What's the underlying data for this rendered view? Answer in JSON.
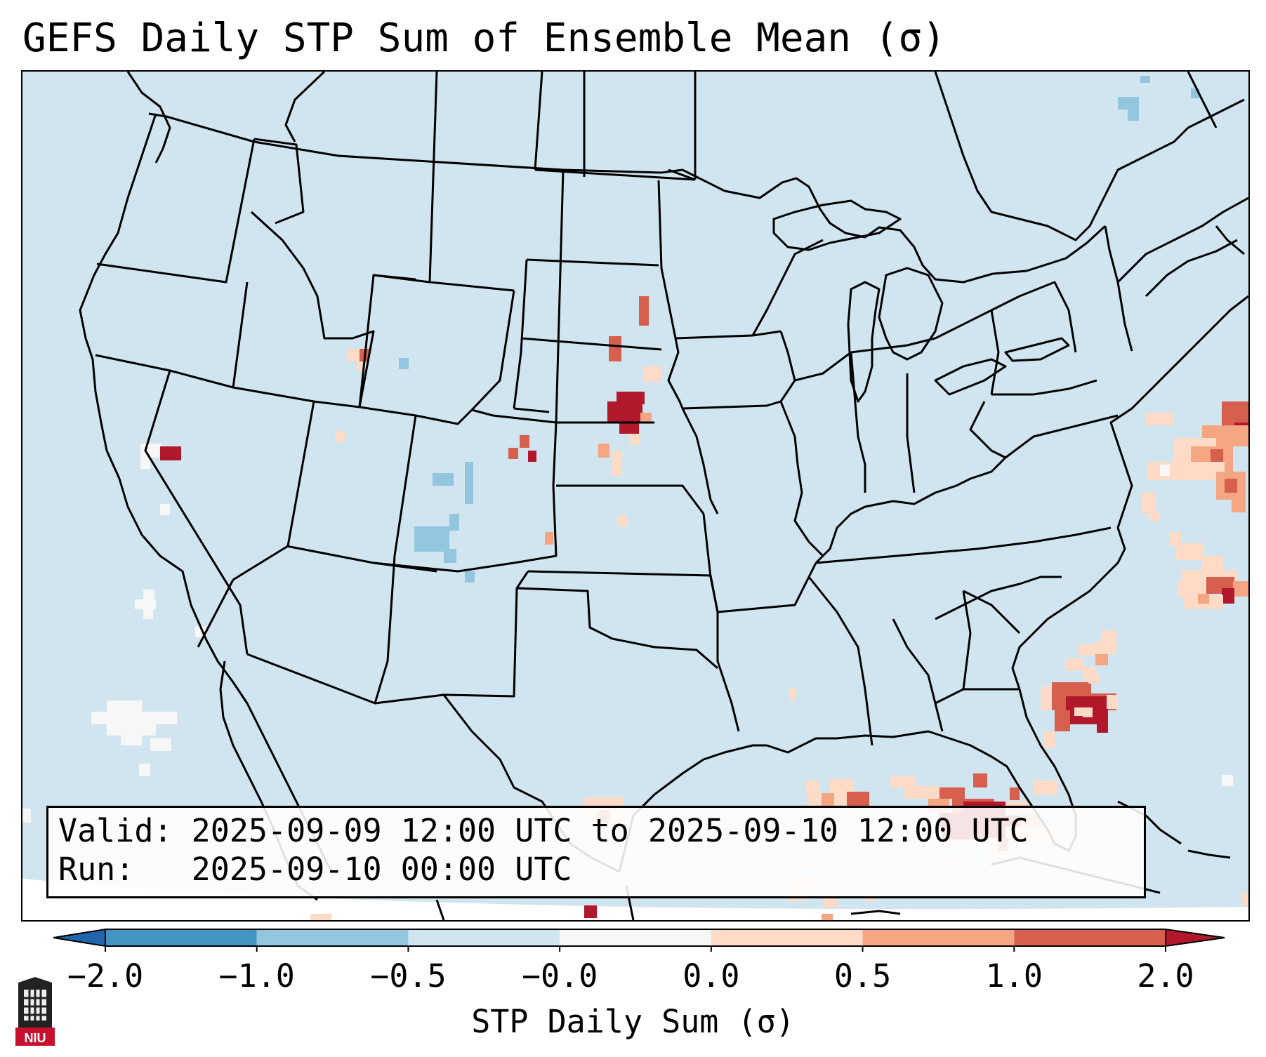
{
  "title": "GEFS Daily STP Sum of Ensemble Mean (σ)",
  "info": {
    "valid_label": "Valid:",
    "valid_value": "2025-09-09 12:00 UTC to 2025-09-10 12:00 UTC",
    "run_label": "Run:",
    "run_value": "2025-09-10 00:00 UTC"
  },
  "colorbar": {
    "label": "STP Daily Sum (σ)",
    "ticks": [
      "−2.0",
      "−1.0",
      "−0.5",
      "−0.0",
      "0.0",
      "0.5",
      "1.0",
      "2.0"
    ],
    "colors": [
      "#2166ac",
      "#4393c3",
      "#92c5de",
      "#d1e5f0",
      "#f7f7f7",
      "#fddbc7",
      "#f4a582",
      "#d6604d",
      "#b2182b"
    ]
  },
  "logo_text": "NIU",
  "colors": {
    "background": "#d1e5f0",
    "border": "#000000"
  }
}
